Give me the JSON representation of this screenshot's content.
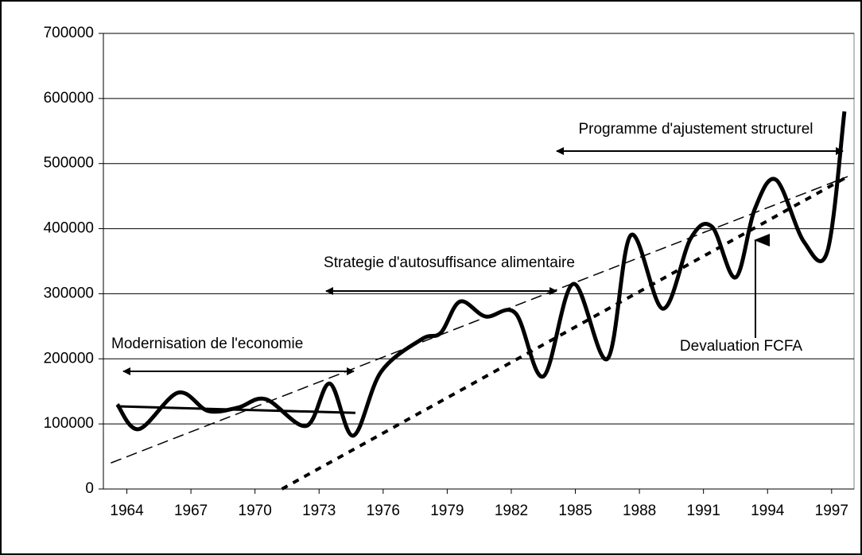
{
  "chart_data": {
    "type": "line",
    "xlim": [
      1962.9,
      1998.05
    ],
    "xticks": [
      1964,
      1967,
      1970,
      1973,
      1976,
      1979,
      1982,
      1985,
      1988,
      1991,
      1994,
      1997
    ],
    "ylim": [
      0,
      700000
    ],
    "yticks": [
      0,
      100000,
      200000,
      300000,
      400000,
      500000,
      600000,
      700000
    ],
    "grid": true,
    "series": [
      {
        "color": "#000000",
        "style": "solid",
        "width": 5,
        "smooth": true,
        "x": [
          1963.55,
          1964.56,
          1966.4,
          1967.8,
          1969.2,
          1970.5,
          1972.4,
          1973.5,
          1974.6,
          1975.9,
          1977.8,
          1978.7,
          1979.6,
          1980.8,
          1982.2,
          1983.5,
          1984.9,
          1986.5,
          1987.6,
          1989.1,
          1990.4,
          1991.4,
          1992.5,
          1993.4,
          1994.4,
          1995.7,
          1996.8,
          1997.6
        ],
        "values": [
          130000,
          92000,
          148000,
          120000,
          125000,
          138000,
          97000,
          162000,
          82000,
          180000,
          230000,
          240000,
          288000,
          265000,
          270000,
          173000,
          315000,
          200000,
          390000,
          277000,
          385000,
          403000,
          325000,
          430000,
          475000,
          380000,
          365000,
          580000
        ]
      },
      {
        "color": "#000000",
        "style": "solid",
        "width": 3,
        "smooth": false,
        "x": [
          1963.55,
          1974.7
        ],
        "values": [
          127000,
          117000
        ]
      },
      {
        "color": "#000000",
        "style": "dashed",
        "width": 1.5,
        "smooth": false,
        "x": [
          1963.25,
          1997.75
        ],
        "values": [
          40000,
          480000
        ]
      },
      {
        "color": "#000000",
        "style": "dotted",
        "width": 4,
        "smooth": false,
        "x": [
          1971.26,
          1997.75
        ],
        "values": [
          0,
          480000
        ]
      }
    ],
    "annotations": [
      "Modernisation de l'economie",
      "Strategie d'autosuffisance alimentaire",
      "Programme d'ajustement structurel",
      "Devaluation FCFA"
    ]
  }
}
